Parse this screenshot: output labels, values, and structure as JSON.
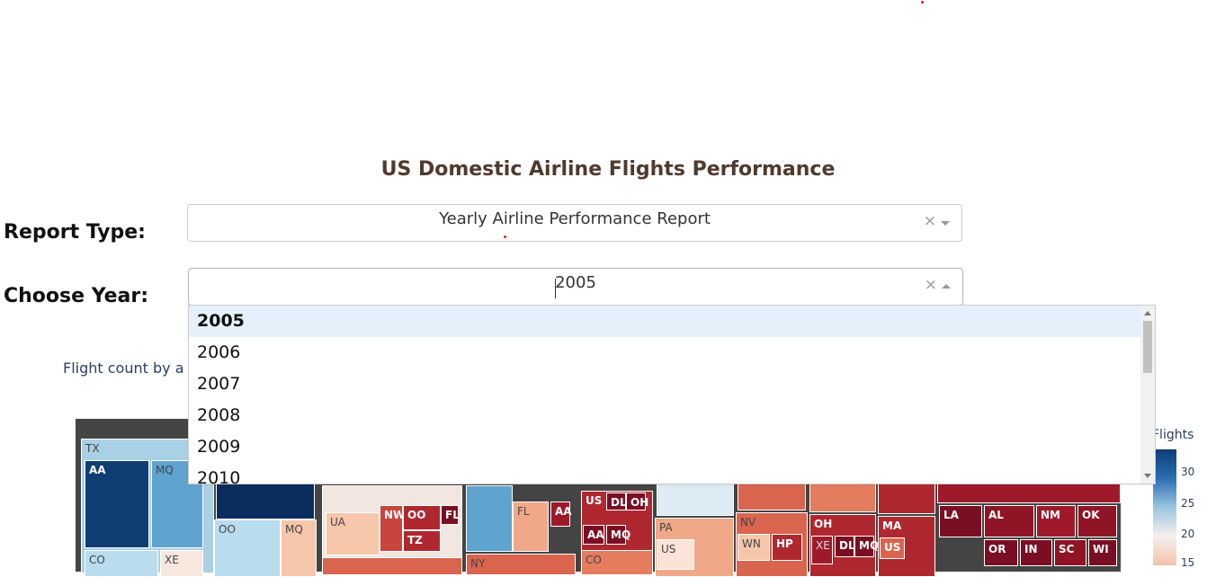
{
  "page": {
    "title": "US Domestic Airline Flights Performance"
  },
  "report_type": {
    "label": "Report Type:",
    "value": "Yearly Airline Performance Report"
  },
  "year": {
    "label": "Choose Year:",
    "value": "2005",
    "options": [
      "2005",
      "2006",
      "2007",
      "2008",
      "2009",
      "2010"
    ]
  },
  "chart": {
    "subtitle": "Flight count by a",
    "colorbar_title": "Flights",
    "colorbar_ticks": [
      "30",
      "25",
      "20",
      "15"
    ],
    "tiles": [
      {
        "label": "TX"
      },
      {
        "label": "AA"
      },
      {
        "label": "MQ"
      },
      {
        "label": "CO"
      },
      {
        "label": "XE"
      },
      {
        "label": "OO"
      },
      {
        "label": "MQ"
      },
      {
        "label": "UA"
      },
      {
        "label": "NW"
      },
      {
        "label": "OO"
      },
      {
        "label": "FL"
      },
      {
        "label": "TZ"
      },
      {
        "label": "FL"
      },
      {
        "label": "AA"
      },
      {
        "label": "US"
      },
      {
        "label": "DL"
      },
      {
        "label": "OH"
      },
      {
        "label": "AA"
      },
      {
        "label": "MQ"
      },
      {
        "label": "PA"
      },
      {
        "label": "US"
      },
      {
        "label": "NV"
      },
      {
        "label": "WN"
      },
      {
        "label": "HP"
      },
      {
        "label": "OH"
      },
      {
        "label": "XE"
      },
      {
        "label": "DL"
      },
      {
        "label": "MQ"
      },
      {
        "label": "MA"
      },
      {
        "label": "US"
      },
      {
        "label": "LA"
      },
      {
        "label": "AL"
      },
      {
        "label": "NM"
      },
      {
        "label": "OK"
      },
      {
        "label": "OR"
      },
      {
        "label": "IN"
      },
      {
        "label": "SC"
      },
      {
        "label": "WI"
      },
      {
        "label": "CO"
      },
      {
        "label": "NY"
      }
    ]
  },
  "colors": {
    "title": "#503a2e",
    "selected_option_bg": "#e4f1fb",
    "scale_dark_blue": "#0b3d78",
    "scale_dark_red": "#8b1528"
  },
  "icons": {
    "clear": "×"
  }
}
